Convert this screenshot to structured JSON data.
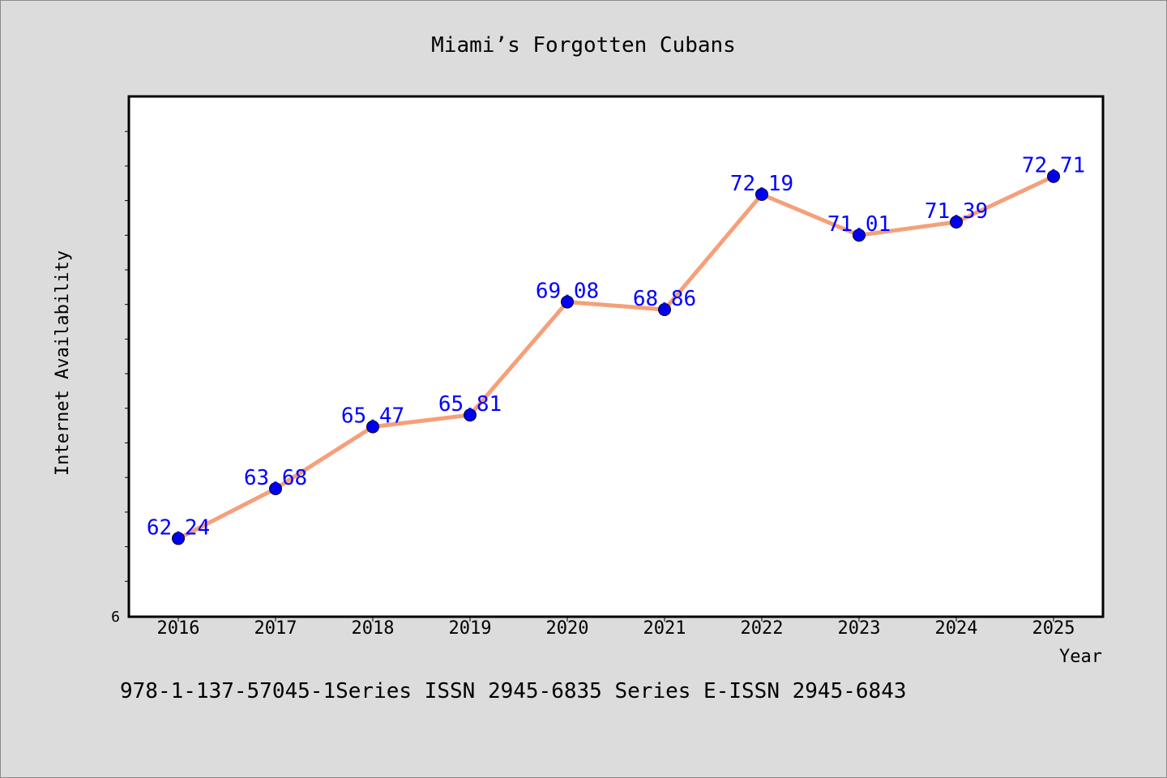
{
  "chart_data": {
    "type": "line",
    "title": "Miami’s Forgotten Cubans",
    "xlabel": "Year",
    "ylabel": "Internet Availability",
    "y_tick_labels": [
      "6"
    ],
    "categories": [
      "2016",
      "2017",
      "2018",
      "2019",
      "2020",
      "2021",
      "2022",
      "2023",
      "2024",
      "2025"
    ],
    "series": [
      {
        "values": [
          62.24,
          63.68,
          65.47,
          65.81,
          69.08,
          68.86,
          72.19,
          71.01,
          71.39,
          72.71
        ],
        "labels": [
          "62.24",
          "63.68",
          "65.47",
          "65.81",
          "69.08",
          "68.86",
          "72.19",
          "71.01",
          "71.39",
          "72.71"
        ]
      }
    ],
    "ylim": [
      60,
      75
    ],
    "grid": false,
    "line_color": "#f5a07a",
    "marker_color": "#0000ee",
    "label_color": "#0000ff",
    "footer": "978-1-137-57045-1Series ISSN 2945-6835 Series E-ISSN 2945-6843"
  }
}
